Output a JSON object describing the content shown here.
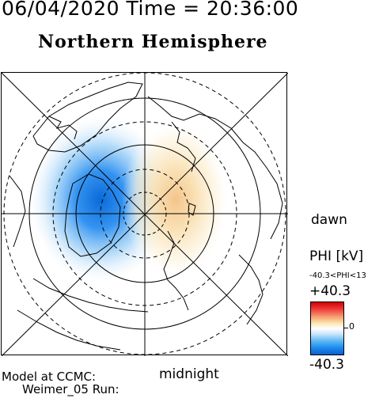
{
  "header": {
    "timestamp": "06/04/2020 Time = 20:36:00",
    "title": "Northern Hemisphere"
  },
  "map": {
    "projection": "polar",
    "pole": "north",
    "orientation_labels": {
      "right": "dawn",
      "bottom": "midnight"
    },
    "field": "electric potential",
    "negative_cell_side": "dusk",
    "positive_cell_side": "dawn"
  },
  "legend": {
    "title": "PHI [kV]",
    "range_text": "-40.3<PHI<13",
    "max_label": "+40.3",
    "min_label": "-40.3",
    "zero_label": "0",
    "colors": {
      "max": "#d40000",
      "high": "#f7a070",
      "zero": "#ffffff",
      "low": "#6cc0f4",
      "min": "#0a5fd0"
    }
  },
  "footer": {
    "model_line1": "Model at CCMC:",
    "model_line2": "Weimer_05 Run:"
  }
}
